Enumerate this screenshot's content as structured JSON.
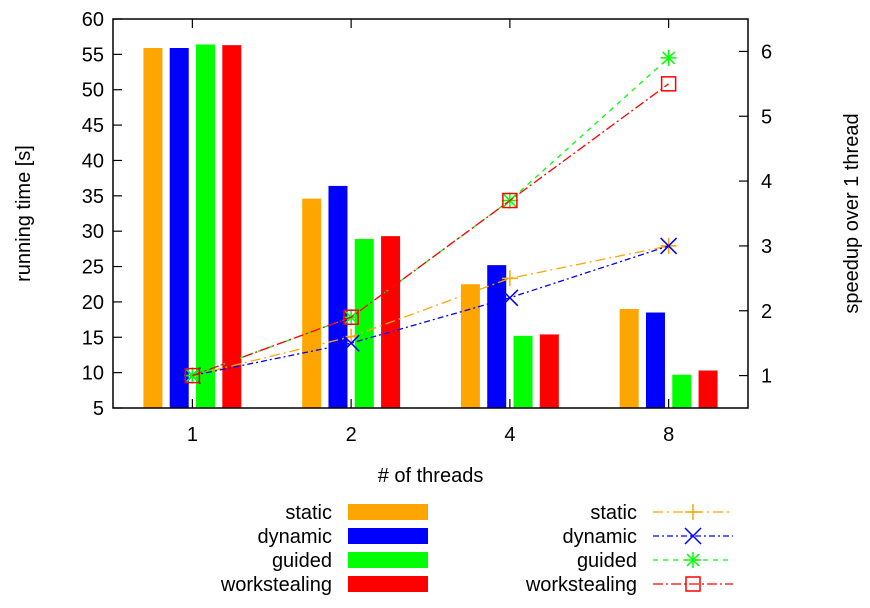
{
  "chart_data": {
    "type": "bar",
    "title": "",
    "xlabel": "# of threads",
    "ylabel": "running time [s]",
    "y2label": "speedup over 1 thread",
    "categories": [
      "1",
      "2",
      "4",
      "8"
    ],
    "ylim": [
      5,
      60
    ],
    "yticks": [
      5,
      10,
      15,
      20,
      25,
      30,
      35,
      40,
      45,
      50,
      55,
      60
    ],
    "y2lim": [
      0.5,
      6.5
    ],
    "y2ticks": [
      1,
      2,
      3,
      4,
      5,
      6
    ],
    "series": [
      {
        "name": "static",
        "color": "#FFA500",
        "values": [
          55.9,
          34.6,
          22.5,
          19.0
        ]
      },
      {
        "name": "dynamic",
        "color": "#0000FF",
        "values": [
          55.9,
          36.4,
          25.2,
          18.5
        ]
      },
      {
        "name": "guided",
        "color": "#00FF00",
        "values": [
          56.4,
          28.9,
          15.2,
          9.7
        ]
      },
      {
        "name": "workstealing",
        "color": "#FF0000",
        "values": [
          56.3,
          29.3,
          15.4,
          10.3
        ]
      }
    ],
    "line_series": [
      {
        "name": "static",
        "color": "#FFA500",
        "marker": "plus",
        "values": [
          1.0,
          1.6,
          2.5,
          3.0
        ]
      },
      {
        "name": "dynamic",
        "color": "#0000FF",
        "marker": "x",
        "values": [
          1.0,
          1.5,
          2.2,
          3.0
        ]
      },
      {
        "name": "guided",
        "color": "#00FF00",
        "marker": "star",
        "values": [
          1.0,
          1.9,
          3.7,
          5.9
        ]
      },
      {
        "name": "workstealing",
        "color": "#FF0000",
        "marker": "square",
        "values": [
          1.0,
          1.9,
          3.7,
          5.5
        ]
      }
    ],
    "grid": false,
    "legend_position": "bottom"
  }
}
